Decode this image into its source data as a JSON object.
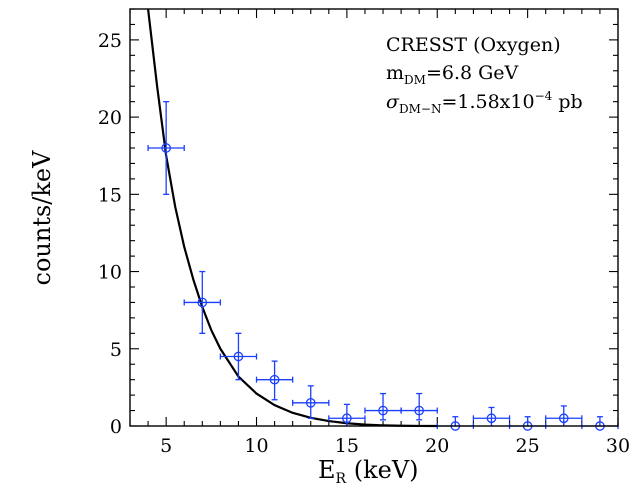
{
  "chart_data": {
    "type": "scatter",
    "xlabel_main": "E",
    "xlabel_sub": "R",
    "xlabel_units": " (keV)",
    "ylabel": "counts/keV",
    "xlim": [
      3,
      30
    ],
    "ylim": [
      0,
      27
    ],
    "xticks": [
      5,
      10,
      15,
      20,
      25,
      30
    ],
    "yticks": [
      0,
      5,
      10,
      15,
      20,
      25
    ],
    "annotation": {
      "line1": "CRESST (Oxygen)",
      "line2_main": "m",
      "line2_sub": "DM",
      "line2_rest": "=6.8 GeV",
      "line3_sigma": "σ",
      "line3_sub": "DM−N",
      "line3_rest": "=1.58x10",
      "line3_exp": "−4",
      "line3_unit": " pb"
    },
    "series": [
      {
        "type": "errorbar",
        "color": "#1a3fff",
        "x": [
          5,
          7,
          9,
          11,
          13,
          15,
          17,
          19,
          21,
          23,
          25,
          27,
          29
        ],
        "y": [
          18,
          8,
          4.5,
          3,
          1.5,
          0.5,
          1,
          1,
          0,
          0.5,
          0,
          0.5,
          0
        ],
        "xerr": [
          1,
          1,
          1,
          1,
          1,
          1,
          1,
          1,
          1,
          1,
          1,
          1,
          1
        ],
        "yerr_low": [
          3,
          2,
          1.5,
          1.3,
          1.0,
          0.5,
          0.6,
          0.6,
          0.0,
          0.5,
          0.0,
          0.5,
          0.0
        ],
        "yerr_high": [
          3,
          2,
          1.5,
          1.2,
          1.1,
          0.9,
          1.1,
          1.1,
          0.6,
          0.7,
          0.6,
          0.8,
          0.6
        ]
      },
      {
        "type": "line",
        "color": "#000000",
        "x": [
          4.0,
          4.5,
          5.0,
          5.5,
          6.0,
          6.5,
          7.0,
          7.5,
          8.0,
          9.0,
          10.0,
          11.0,
          12.0,
          13.0,
          14.0,
          15.0,
          16.0,
          17.0,
          18.0,
          19.0,
          20.0
        ],
        "y": [
          27.0,
          22.0,
          17.5,
          14.2,
          11.6,
          9.5,
          7.7,
          6.2,
          5.0,
          3.2,
          2.1,
          1.35,
          0.85,
          0.53,
          0.32,
          0.18,
          0.09,
          0.04,
          0.015,
          0.004,
          0.0
        ]
      }
    ]
  }
}
